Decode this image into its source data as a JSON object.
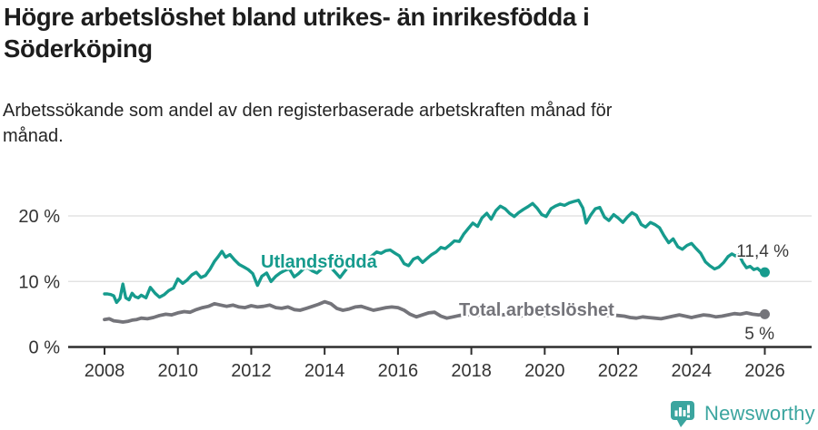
{
  "header": {
    "title_lines": [
      "Högre arbetslöshet bland utrikes- än inrikesfödda i",
      "Söderköping"
    ],
    "subtitle_lines": [
      "Arbetssökande som andel av den registerbaserade arbetskraften månad för",
      "månad."
    ]
  },
  "chart_data": {
    "type": "line",
    "title": "Högre arbetslöshet bland utrikes- än inrikesfödda i Söderköping",
    "subtitle": "Arbetssökande som andel av den registerbaserade arbetskraften månad för månad.",
    "xlabel": "",
    "ylabel": "",
    "y_unit": "%",
    "xlim": [
      2007.6,
      2027.3
    ],
    "ylim": [
      0,
      24
    ],
    "grid": "horizontal",
    "x_ticks": [
      2008,
      2010,
      2012,
      2014,
      2016,
      2018,
      2020,
      2022,
      2024,
      2026
    ],
    "y_ticks": [
      {
        "value": 0,
        "label": "0 %"
      },
      {
        "value": 10,
        "label": "10 %"
      },
      {
        "value": 20,
        "label": "20 %"
      }
    ],
    "y_gridlines": [
      10,
      20
    ],
    "series": [
      {
        "name": "Utlandsfödda",
        "color": "#169B8D",
        "end_label": "11,4 %",
        "end_value": 11.4,
        "points": [
          [
            2008.0,
            8.1
          ],
          [
            2008.08,
            8.1
          ],
          [
            2008.17,
            8.0
          ],
          [
            2008.25,
            7.8
          ],
          [
            2008.33,
            6.8
          ],
          [
            2008.42,
            7.4
          ],
          [
            2008.5,
            9.6
          ],
          [
            2008.58,
            7.5
          ],
          [
            2008.67,
            7.2
          ],
          [
            2008.75,
            8.2
          ],
          [
            2008.83,
            7.7
          ],
          [
            2008.92,
            7.5
          ],
          [
            2009.0,
            7.9
          ],
          [
            2009.13,
            7.5
          ],
          [
            2009.25,
            9.1
          ],
          [
            2009.38,
            8.2
          ],
          [
            2009.5,
            7.6
          ],
          [
            2009.63,
            8.0
          ],
          [
            2009.75,
            8.6
          ],
          [
            2009.88,
            9.0
          ],
          [
            2010.0,
            10.4
          ],
          [
            2010.13,
            9.7
          ],
          [
            2010.25,
            10.2
          ],
          [
            2010.38,
            11.0
          ],
          [
            2010.5,
            11.4
          ],
          [
            2010.63,
            10.6
          ],
          [
            2010.75,
            10.9
          ],
          [
            2010.88,
            11.9
          ],
          [
            2011.0,
            13.1
          ],
          [
            2011.1,
            13.8
          ],
          [
            2011.2,
            14.6
          ],
          [
            2011.3,
            13.7
          ],
          [
            2011.42,
            14.1
          ],
          [
            2011.54,
            13.3
          ],
          [
            2011.67,
            12.6
          ],
          [
            2011.8,
            12.2
          ],
          [
            2011.92,
            11.8
          ],
          [
            2012.04,
            11.2
          ],
          [
            2012.17,
            9.4
          ],
          [
            2012.29,
            10.8
          ],
          [
            2012.42,
            11.3
          ],
          [
            2012.54,
            10.0
          ],
          [
            2012.67,
            10.8
          ],
          [
            2012.79,
            11.3
          ],
          [
            2012.92,
            11.7
          ],
          [
            2013.04,
            11.9
          ],
          [
            2013.17,
            10.7
          ],
          [
            2013.29,
            11.2
          ],
          [
            2013.42,
            11.9
          ],
          [
            2013.54,
            12.1
          ],
          [
            2013.67,
            11.6
          ],
          [
            2013.79,
            11.3
          ],
          [
            2013.92,
            11.9
          ],
          [
            2014.04,
            12.5
          ],
          [
            2014.17,
            12.1
          ],
          [
            2014.29,
            11.4
          ],
          [
            2014.42,
            10.6
          ],
          [
            2014.54,
            11.5
          ],
          [
            2014.67,
            12.4
          ],
          [
            2014.79,
            12.8
          ],
          [
            2014.92,
            12.6
          ],
          [
            2015.04,
            13.0
          ],
          [
            2015.17,
            13.4
          ],
          [
            2015.29,
            13.9
          ],
          [
            2015.42,
            14.5
          ],
          [
            2015.54,
            14.3
          ],
          [
            2015.67,
            14.7
          ],
          [
            2015.79,
            14.8
          ],
          [
            2015.92,
            14.3
          ],
          [
            2016.04,
            13.9
          ],
          [
            2016.17,
            12.7
          ],
          [
            2016.29,
            12.4
          ],
          [
            2016.42,
            13.4
          ],
          [
            2016.54,
            13.7
          ],
          [
            2016.67,
            12.9
          ],
          [
            2016.79,
            13.5
          ],
          [
            2016.92,
            14.1
          ],
          [
            2017.04,
            14.5
          ],
          [
            2017.17,
            15.2
          ],
          [
            2017.29,
            15.0
          ],
          [
            2017.42,
            15.6
          ],
          [
            2017.54,
            16.2
          ],
          [
            2017.67,
            16.1
          ],
          [
            2017.79,
            17.2
          ],
          [
            2017.92,
            18.1
          ],
          [
            2018.04,
            18.9
          ],
          [
            2018.17,
            18.4
          ],
          [
            2018.29,
            19.7
          ],
          [
            2018.42,
            20.4
          ],
          [
            2018.54,
            19.5
          ],
          [
            2018.67,
            20.8
          ],
          [
            2018.79,
            21.5
          ],
          [
            2018.92,
            21.1
          ],
          [
            2019.04,
            20.4
          ],
          [
            2019.17,
            19.9
          ],
          [
            2019.29,
            20.5
          ],
          [
            2019.42,
            21.0
          ],
          [
            2019.54,
            21.4
          ],
          [
            2019.67,
            21.9
          ],
          [
            2019.79,
            21.2
          ],
          [
            2019.92,
            20.2
          ],
          [
            2020.04,
            19.9
          ],
          [
            2020.17,
            21.1
          ],
          [
            2020.29,
            21.5
          ],
          [
            2020.42,
            21.8
          ],
          [
            2020.54,
            21.6
          ],
          [
            2020.67,
            22.0
          ],
          [
            2020.79,
            22.2
          ],
          [
            2020.92,
            22.4
          ],
          [
            2021.04,
            21.2
          ],
          [
            2021.13,
            18.9
          ],
          [
            2021.25,
            20.1
          ],
          [
            2021.38,
            21.1
          ],
          [
            2021.5,
            21.3
          ],
          [
            2021.63,
            19.8
          ],
          [
            2021.75,
            19.3
          ],
          [
            2021.88,
            20.2
          ],
          [
            2022.0,
            19.7
          ],
          [
            2022.13,
            19.0
          ],
          [
            2022.25,
            19.8
          ],
          [
            2022.38,
            20.5
          ],
          [
            2022.5,
            20.1
          ],
          [
            2022.63,
            18.7
          ],
          [
            2022.75,
            18.3
          ],
          [
            2022.88,
            19.0
          ],
          [
            2023.0,
            18.7
          ],
          [
            2023.13,
            18.2
          ],
          [
            2023.25,
            17.0
          ],
          [
            2023.38,
            15.9
          ],
          [
            2023.5,
            16.5
          ],
          [
            2023.63,
            15.3
          ],
          [
            2023.75,
            14.9
          ],
          [
            2023.88,
            15.5
          ],
          [
            2024.0,
            15.8
          ],
          [
            2024.13,
            15.0
          ],
          [
            2024.25,
            14.3
          ],
          [
            2024.38,
            13.0
          ],
          [
            2024.5,
            12.4
          ],
          [
            2024.63,
            11.9
          ],
          [
            2024.75,
            12.2
          ],
          [
            2024.88,
            12.9
          ],
          [
            2025.0,
            13.8
          ],
          [
            2025.1,
            14.2
          ],
          [
            2025.2,
            13.9
          ],
          [
            2025.3,
            14.1
          ],
          [
            2025.4,
            12.9
          ],
          [
            2025.5,
            12.1
          ],
          [
            2025.6,
            12.3
          ],
          [
            2025.7,
            11.8
          ],
          [
            2025.8,
            12.0
          ],
          [
            2025.9,
            11.5
          ],
          [
            2026.0,
            11.4
          ]
        ]
      },
      {
        "name": "Total arbetslöshet",
        "color": "#74747A",
        "end_label": "5 %",
        "end_value": 5,
        "points": [
          [
            2008.0,
            4.2
          ],
          [
            2008.13,
            4.3
          ],
          [
            2008.25,
            4.0
          ],
          [
            2008.38,
            3.9
          ],
          [
            2008.5,
            3.8
          ],
          [
            2008.63,
            3.9
          ],
          [
            2008.75,
            4.1
          ],
          [
            2008.88,
            4.2
          ],
          [
            2009.0,
            4.4
          ],
          [
            2009.17,
            4.3
          ],
          [
            2009.33,
            4.5
          ],
          [
            2009.5,
            4.8
          ],
          [
            2009.67,
            5.0
          ],
          [
            2009.83,
            4.9
          ],
          [
            2010.0,
            5.2
          ],
          [
            2010.17,
            5.4
          ],
          [
            2010.33,
            5.3
          ],
          [
            2010.5,
            5.7
          ],
          [
            2010.67,
            6.0
          ],
          [
            2010.83,
            6.2
          ],
          [
            2011.0,
            6.6
          ],
          [
            2011.17,
            6.4
          ],
          [
            2011.33,
            6.2
          ],
          [
            2011.5,
            6.4
          ],
          [
            2011.67,
            6.1
          ],
          [
            2011.83,
            6.0
          ],
          [
            2012.0,
            6.3
          ],
          [
            2012.17,
            6.1
          ],
          [
            2012.33,
            6.2
          ],
          [
            2012.5,
            6.4
          ],
          [
            2012.67,
            6.0
          ],
          [
            2012.83,
            5.9
          ],
          [
            2013.0,
            6.1
          ],
          [
            2013.17,
            5.7
          ],
          [
            2013.33,
            5.6
          ],
          [
            2013.5,
            5.9
          ],
          [
            2013.67,
            6.2
          ],
          [
            2013.83,
            6.5
          ],
          [
            2014.0,
            6.9
          ],
          [
            2014.17,
            6.6
          ],
          [
            2014.33,
            5.9
          ],
          [
            2014.5,
            5.6
          ],
          [
            2014.67,
            5.8
          ],
          [
            2014.83,
            6.1
          ],
          [
            2015.0,
            6.2
          ],
          [
            2015.17,
            5.9
          ],
          [
            2015.33,
            5.6
          ],
          [
            2015.5,
            5.8
          ],
          [
            2015.67,
            6.0
          ],
          [
            2015.83,
            6.1
          ],
          [
            2016.0,
            6.0
          ],
          [
            2016.17,
            5.6
          ],
          [
            2016.33,
            5.0
          ],
          [
            2016.5,
            4.6
          ],
          [
            2016.67,
            4.9
          ],
          [
            2016.83,
            5.2
          ],
          [
            2017.0,
            5.3
          ],
          [
            2017.17,
            4.7
          ],
          [
            2017.33,
            4.4
          ],
          [
            2017.5,
            4.6
          ],
          [
            2017.67,
            4.8
          ],
          [
            2017.83,
            4.9
          ],
          [
            2018.0,
            5.0
          ],
          [
            2018.17,
            4.8
          ],
          [
            2018.33,
            5.2
          ],
          [
            2018.5,
            5.3
          ],
          [
            2018.67,
            5.0
          ],
          [
            2018.83,
            4.9
          ],
          [
            2019.0,
            5.0
          ],
          [
            2019.17,
            4.8
          ],
          [
            2019.33,
            4.7
          ],
          [
            2019.5,
            4.9
          ],
          [
            2019.67,
            5.1
          ],
          [
            2019.83,
            5.0
          ],
          [
            2020.0,
            4.8
          ],
          [
            2020.17,
            5.0
          ],
          [
            2020.33,
            5.2
          ],
          [
            2020.5,
            5.3
          ],
          [
            2020.67,
            5.1
          ],
          [
            2020.83,
            5.2
          ],
          [
            2021.0,
            5.1
          ],
          [
            2021.17,
            4.9
          ],
          [
            2021.33,
            5.0
          ],
          [
            2021.5,
            4.9
          ],
          [
            2021.67,
            4.8
          ],
          [
            2021.83,
            4.9
          ],
          [
            2022.0,
            4.8
          ],
          [
            2022.17,
            4.7
          ],
          [
            2022.33,
            4.5
          ],
          [
            2022.5,
            4.4
          ],
          [
            2022.67,
            4.6
          ],
          [
            2022.83,
            4.5
          ],
          [
            2023.0,
            4.4
          ],
          [
            2023.17,
            4.3
          ],
          [
            2023.33,
            4.5
          ],
          [
            2023.5,
            4.7
          ],
          [
            2023.67,
            4.9
          ],
          [
            2023.83,
            4.7
          ],
          [
            2024.0,
            4.5
          ],
          [
            2024.17,
            4.7
          ],
          [
            2024.33,
            4.9
          ],
          [
            2024.5,
            4.8
          ],
          [
            2024.67,
            4.6
          ],
          [
            2024.83,
            4.7
          ],
          [
            2025.0,
            4.9
          ],
          [
            2025.17,
            5.1
          ],
          [
            2025.33,
            5.0
          ],
          [
            2025.5,
            5.2
          ],
          [
            2025.67,
            5.0
          ],
          [
            2025.83,
            4.9
          ],
          [
            2026.0,
            5.0
          ]
        ]
      }
    ],
    "colors": {
      "grid": "#dedede",
      "axis": "#2e2e2e",
      "tick_text": "#333333"
    }
  },
  "branding": {
    "logo_text": "Newsworthy",
    "logo_color": "#3BA59F",
    "logo_icon": "bar-chart-speech-bubble"
  }
}
